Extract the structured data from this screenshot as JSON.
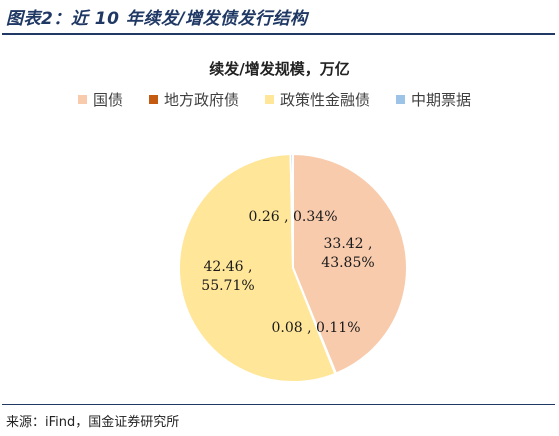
{
  "figure": {
    "title": "图表2：近 10 年续发/增发债发行结构",
    "source": "来源：iFind，国金证券研究所"
  },
  "chart_data": {
    "type": "pie",
    "title": "续发/增发规模，万亿",
    "legend_position": "top",
    "series": [
      {
        "name": "国债",
        "value": 33.42,
        "percent": 43.85,
        "color": "#f8cbad",
        "label": "33.42 ,\n43.85%"
      },
      {
        "name": "地方政府债",
        "value": 0.08,
        "percent": 0.11,
        "color": "#c55a11",
        "label": "0.08 , 0.11%"
      },
      {
        "name": "政策性金融债",
        "value": 42.46,
        "percent": 55.71,
        "color": "#ffe699",
        "label": "42.46 ,\n55.71%"
      },
      {
        "name": "中期票据",
        "value": 0.26,
        "percent": 0.34,
        "color": "#9dc3e6",
        "label": "0.26 , 0.34%"
      }
    ]
  }
}
